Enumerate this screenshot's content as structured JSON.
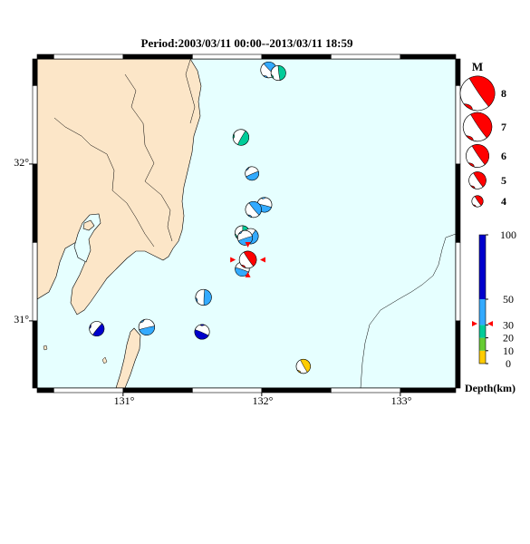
{
  "title": "Period:2003/03/11 00:00--2013/03/11 18:59",
  "axes": {
    "x_ticks": [
      "131°",
      "132°",
      "133°"
    ],
    "y_ticks": [
      "32°",
      "31°"
    ]
  },
  "colors": {
    "sea": "#e6ffff",
    "land": "#fce6c8",
    "highlight": "#ff0000"
  },
  "magnitude_legend": {
    "title": "M",
    "items": [
      {
        "label": "8",
        "magnitude": 8
      },
      {
        "label": "7",
        "magnitude": 7
      },
      {
        "label": "6",
        "magnitude": 6
      },
      {
        "label": "5",
        "magnitude": 5
      },
      {
        "label": "4",
        "magnitude": 4
      }
    ]
  },
  "depth_legend": {
    "title": "Depth(km)",
    "ticks": [
      "100",
      "50",
      "30",
      "20",
      "10",
      "0"
    ],
    "bands": [
      {
        "from_km": 0,
        "to_km": 10,
        "color": "#ffcc00"
      },
      {
        "from_km": 10,
        "to_km": 20,
        "color": "#66cc33"
      },
      {
        "from_km": 20,
        "to_km": 30,
        "color": "#00cc99"
      },
      {
        "from_km": 30,
        "to_km": 50,
        "color": "#33aaff"
      },
      {
        "from_km": 50,
        "to_km": 100,
        "color": "#0000cc"
      }
    ],
    "marker_depth_km": 31
  },
  "events": [
    {
      "lon": 132.05,
      "lat": 32.6,
      "color": "#33aaff",
      "mag": 4.8
    },
    {
      "lon": 132.12,
      "lat": 32.58,
      "color": "#00cc99",
      "mag": 4.6
    },
    {
      "lon": 131.85,
      "lat": 32.17,
      "color": "#00cc99",
      "mag": 4.8
    },
    {
      "lon": 131.93,
      "lat": 31.94,
      "color": "#33aaff",
      "mag": 4.4
    },
    {
      "lon": 132.02,
      "lat": 31.74,
      "color": "#33aaff",
      "mag": 4.6
    },
    {
      "lon": 131.94,
      "lat": 31.71,
      "color": "#33aaff",
      "mag": 4.8
    },
    {
      "lon": 131.86,
      "lat": 31.56,
      "color": "#00cc99",
      "mag": 4.6
    },
    {
      "lon": 131.92,
      "lat": 31.54,
      "color": "#33aaff",
      "mag": 4.7
    },
    {
      "lon": 131.88,
      "lat": 31.53,
      "color": "#33aaff",
      "mag": 4.6
    },
    {
      "lon": 131.86,
      "lat": 31.33,
      "color": "#33aaff",
      "mag": 4.5
    },
    {
      "lon": 131.9,
      "lat": 31.39,
      "color": "#ff0000",
      "mag": 5.0,
      "highlight": true
    },
    {
      "lon": 131.58,
      "lat": 31.15,
      "color": "#33aaff",
      "mag": 4.8
    },
    {
      "lon": 130.81,
      "lat": 30.95,
      "color": "#0000cc",
      "mag": 4.6
    },
    {
      "lon": 131.17,
      "lat": 30.96,
      "color": "#33aaff",
      "mag": 4.8
    },
    {
      "lon": 131.57,
      "lat": 30.93,
      "color": "#0000cc",
      "mag": 4.6
    },
    {
      "lon": 132.3,
      "lat": 30.71,
      "color": "#ffcc00",
      "mag": 4.5
    }
  ]
}
